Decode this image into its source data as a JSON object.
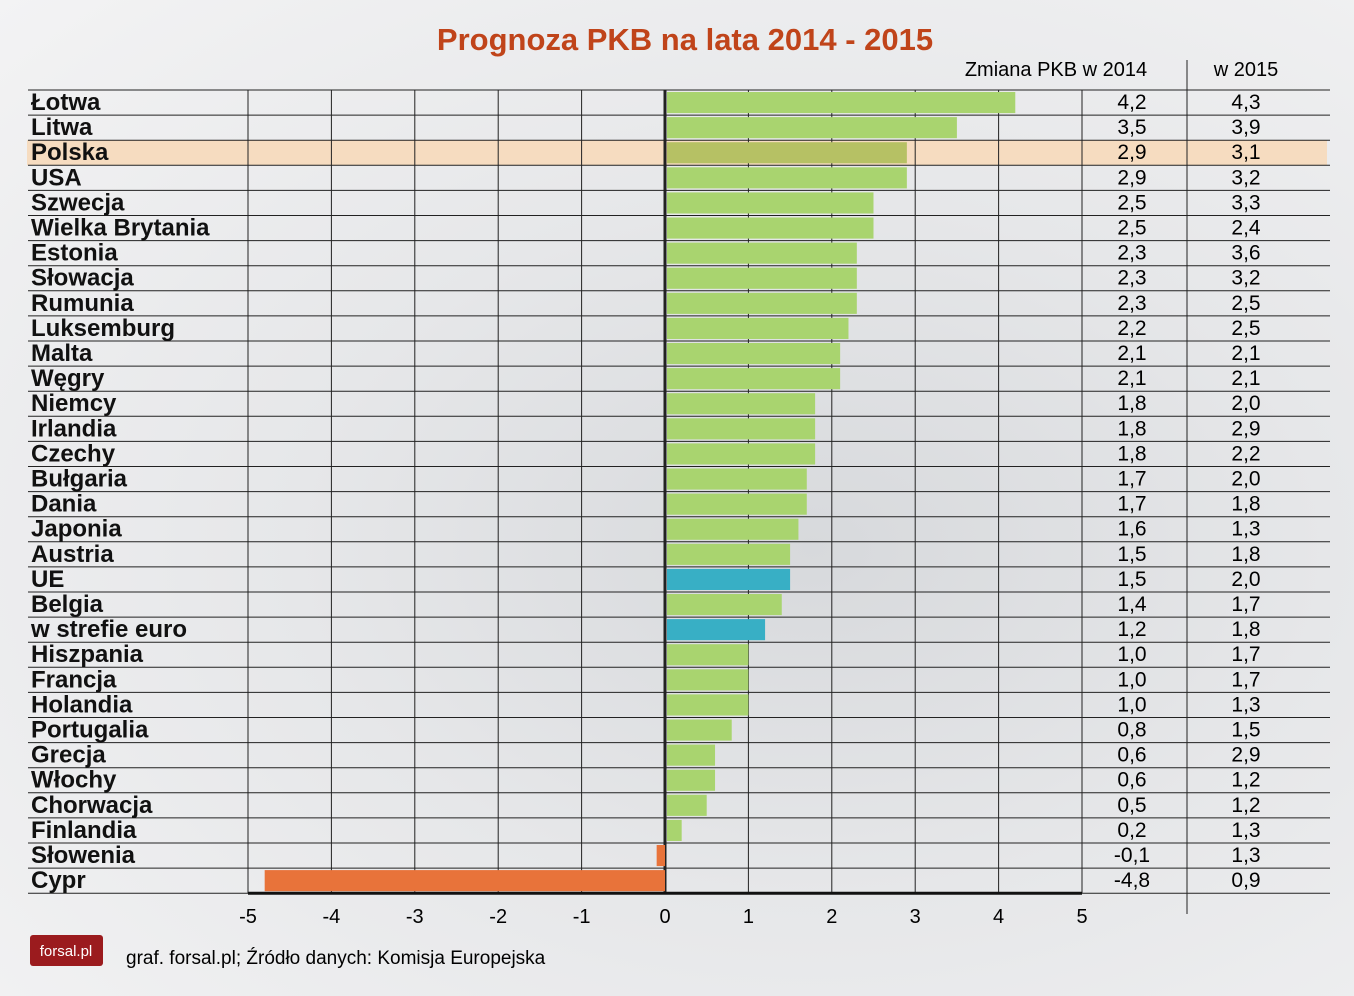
{
  "chart_data": {
    "type": "bar",
    "orientation": "horizontal",
    "title": "Prognoza PKB na lata 2014 - 2015",
    "column_headers": [
      "Zmiana PKB w 2014",
      "w 2015"
    ],
    "categories": [
      "Łotwa",
      "Litwa",
      "Polska",
      "USA",
      "Szwecja",
      "Wielka Brytania",
      "Estonia",
      "Słowacja",
      "Rumunia",
      "Luksemburg",
      "Malta",
      "Węgry",
      "Niemcy",
      "Irlandia",
      "Czechy",
      "Bułgaria",
      "Dania",
      "Japonia",
      "Austria",
      "UE",
      "Belgia",
      "w strefie euro",
      "Hiszpania",
      "Francja",
      "Holandia",
      "Portugalia",
      "Grecja",
      "Włochy",
      "Chorwacja",
      "Finlandia",
      "Słowenia",
      "Cypr"
    ],
    "series": [
      {
        "name": "Zmiana PKB w 2014",
        "values": [
          4.2,
          3.5,
          2.9,
          2.9,
          2.5,
          2.5,
          2.3,
          2.3,
          2.3,
          2.2,
          2.1,
          2.1,
          1.8,
          1.8,
          1.8,
          1.7,
          1.7,
          1.6,
          1.5,
          1.5,
          1.4,
          1.2,
          1.0,
          1.0,
          1.0,
          0.8,
          0.6,
          0.6,
          0.5,
          0.2,
          -0.1,
          -4.8
        ]
      },
      {
        "name": "w 2015",
        "values": [
          4.3,
          3.9,
          3.1,
          3.2,
          3.3,
          2.4,
          3.6,
          3.2,
          2.5,
          2.5,
          2.1,
          2.1,
          2.0,
          2.9,
          2.2,
          2.0,
          1.8,
          1.3,
          1.8,
          2.0,
          1.7,
          1.8,
          1.7,
          1.7,
          1.3,
          1.5,
          2.9,
          1.2,
          1.2,
          1.3,
          1.3,
          0.9
        ]
      }
    ],
    "labels_2014": [
      "4,2",
      "3,5",
      "2,9",
      "2,9",
      "2,5",
      "2,5",
      "2,3",
      "2,3",
      "2,3",
      "2,2",
      "2,1",
      "2,1",
      "1,8",
      "1,8",
      "1,8",
      "1,7",
      "1,7",
      "1,6",
      "1,5",
      "1,5",
      "1,4",
      "1,2",
      "1,0",
      "1,0",
      "1,0",
      "0,8",
      "0,6",
      "0,6",
      "0,5",
      "0,2",
      "-0,1",
      "-4,8"
    ],
    "labels_2015": [
      "4,3",
      "3,9",
      "3,1",
      "3,2",
      "3,3",
      "2,4",
      "3,6",
      "3,2",
      "2,5",
      "2,5",
      "2,1",
      "2,1",
      "2,0",
      "2,9",
      "2,2",
      "2,0",
      "1,8",
      "1,3",
      "1,8",
      "2,0",
      "1,7",
      "1,8",
      "1,7",
      "1,7",
      "1,3",
      "1,5",
      "2,9",
      "1,2",
      "1,2",
      "1,3",
      "1,3",
      "0,9"
    ],
    "highlight": "Polska",
    "aggregates": [
      "UE",
      "w strefie euro"
    ],
    "xlim": [
      -5,
      5
    ],
    "xticks": [
      "-5",
      "-4",
      "-3",
      "-2",
      "-1",
      "0",
      "1",
      "2",
      "3",
      "4",
      "5"
    ],
    "grid": true,
    "colors": {
      "positive": "#a9d46f",
      "aggregate": "#38afc5",
      "negative": "#e8733a",
      "highlight_bar": "#b6c164",
      "highlight_row": "#f6dcc0",
      "title": "#c0441a"
    }
  },
  "footer": {
    "source": "graf. forsal.pl; Źródło danych: Komisja Europejska",
    "logo": "forsal.pl"
  }
}
